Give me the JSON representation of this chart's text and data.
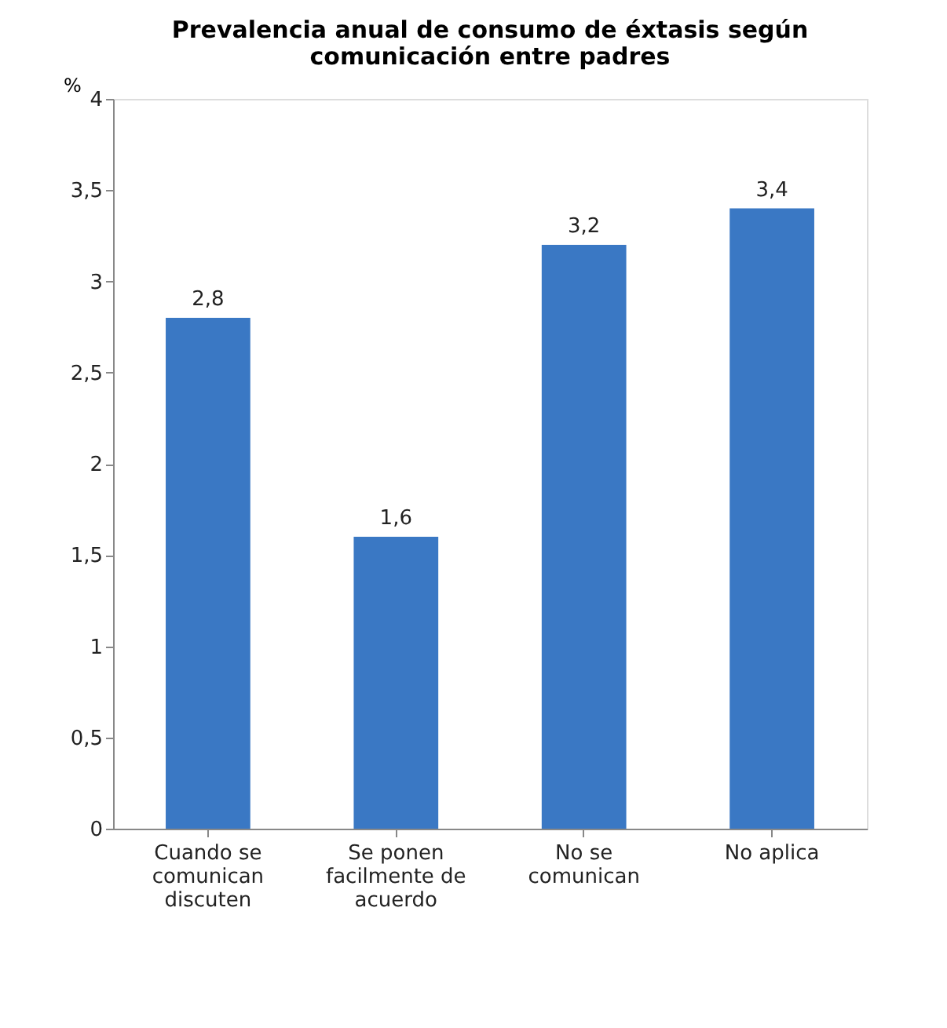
{
  "chart_data": {
    "type": "bar",
    "title": "Prevalencia anual de consumo de éxtasis según comunicación entre padres",
    "ylabel": "%",
    "categories": [
      "Cuando se comunican discuten",
      "Se ponen facilmente de acuerdo",
      "No se comunican",
      "No aplica"
    ],
    "values": [
      2.8,
      1.6,
      3.2,
      3.4
    ],
    "color": "#3a78c4",
    "value_labels": [
      "2,8",
      "1,6",
      "3,2",
      "3,4"
    ],
    "ylim": [
      0,
      4
    ],
    "yticks": [
      0,
      {
        "value": 0.5,
        "label": "0,5"
      },
      1,
      {
        "value": 1.5,
        "label": "1,5"
      },
      2,
      {
        "value": 2.5,
        "label": "2,5"
      },
      3,
      {
        "value": 3.5,
        "label": "3,5"
      },
      4
    ],
    "grid": false
  }
}
